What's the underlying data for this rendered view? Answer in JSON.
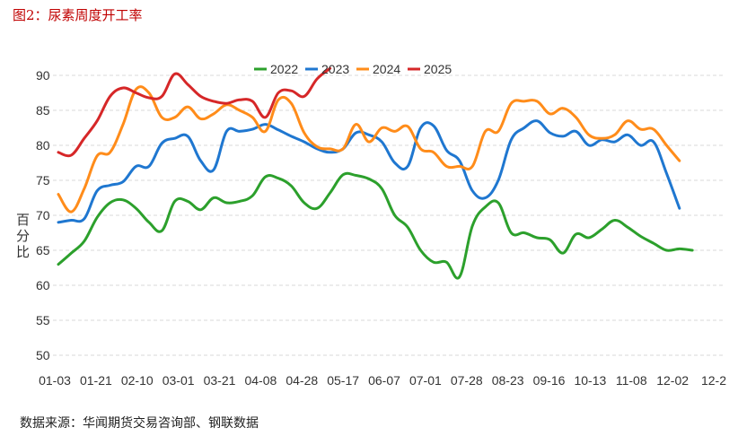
{
  "figure": {
    "title": "图2：尿素周度开工率",
    "source": "数据来源：华闻期货交易咨询部、钢联数据"
  },
  "chart_data": {
    "type": "line",
    "title": "",
    "ylabel": "百分比",
    "xlabel": "",
    "ylim": [
      50,
      92
    ],
    "yticks": [
      50,
      55,
      60,
      65,
      70,
      75,
      80,
      85,
      90
    ],
    "x_tick_labels": [
      "01-03",
      "01-21",
      "02-10",
      "03-01",
      "03-21",
      "04-08",
      "04-28",
      "05-17",
      "06-07",
      "07-01",
      "07-28",
      "08-23",
      "09-16",
      "10-13",
      "11-08",
      "12-02",
      "12-2"
    ],
    "x_count": 52,
    "legend_position": "top-center",
    "grid": "horizontal dashed",
    "series": [
      {
        "name": "2022",
        "color": "#2ca02c",
        "values": [
          63.0,
          64.6,
          66.3,
          69.7,
          71.8,
          72.2,
          71.0,
          69.0,
          67.8,
          72.0,
          72.0,
          70.8,
          72.5,
          71.8,
          72.0,
          72.8,
          75.5,
          75.3,
          74.2,
          71.8,
          71.0,
          73.2,
          75.8,
          75.7,
          75.2,
          73.8,
          70.0,
          68.3,
          65.0,
          63.3,
          63.3,
          61.2,
          68.5,
          71.2,
          71.8,
          67.5,
          67.5,
          66.8,
          66.5,
          64.6,
          67.3,
          66.8,
          68.0,
          69.3,
          68.3,
          67.0,
          66.0,
          65.0,
          65.2,
          65.0
        ]
      },
      {
        "name": "2023",
        "color": "#1f77d0",
        "values": [
          69.0,
          69.3,
          69.5,
          73.5,
          74.3,
          74.8,
          77.0,
          77.0,
          80.3,
          81.0,
          81.3,
          77.8,
          76.5,
          82.0,
          82.0,
          82.3,
          83.0,
          82.2,
          81.3,
          80.5,
          79.5,
          79.0,
          79.5,
          81.8,
          81.5,
          80.5,
          77.5,
          77.0,
          82.5,
          82.8,
          79.3,
          77.8,
          73.5,
          72.5,
          75.0,
          80.8,
          82.5,
          83.5,
          81.8,
          81.3,
          82.0,
          80.0,
          80.8,
          80.5,
          81.5,
          80.0,
          80.5,
          76.0,
          71.0
        ]
      },
      {
        "name": "2024",
        "color": "#ff8c1a",
        "values": [
          73.0,
          70.5,
          73.8,
          78.5,
          79.0,
          83.0,
          88.0,
          87.5,
          84.0,
          84.0,
          85.5,
          83.8,
          84.5,
          85.8,
          85.0,
          84.0,
          82.0,
          86.5,
          86.0,
          81.8,
          79.8,
          79.5,
          79.5,
          83.0,
          80.5,
          82.5,
          82.0,
          82.7,
          79.5,
          79.0,
          77.0,
          77.0,
          77.0,
          82.0,
          82.0,
          86.0,
          86.3,
          86.3,
          84.5,
          85.3,
          84.0,
          81.5,
          81.0,
          81.5,
          83.5,
          82.3,
          82.3,
          80.0,
          77.8
        ]
      },
      {
        "name": "2025",
        "color": "#d62728",
        "values": [
          79.0,
          78.6,
          81.0,
          83.5,
          87.0,
          88.2,
          87.5,
          86.8,
          87.0,
          90.2,
          88.7,
          87.0,
          86.3,
          86.0,
          86.5,
          86.3,
          84.0,
          87.5,
          87.8,
          87.0,
          89.5,
          91.0
        ]
      }
    ]
  }
}
